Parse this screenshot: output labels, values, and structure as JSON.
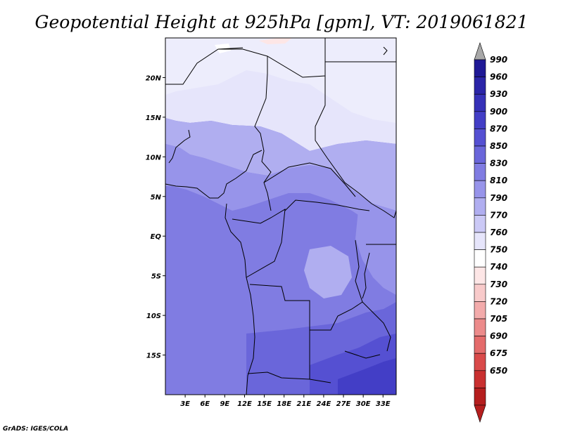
{
  "title": "Geopotential Height at 925hPa [gpm], VT: 2019061821",
  "credit": "GrADS: IGES/COLA",
  "map": {
    "lon_range": [
      0,
      35
    ],
    "lat_range": [
      -20,
      25
    ],
    "lon_ticks": [
      "3E",
      "6E",
      "9E",
      "12E",
      "15E",
      "18E",
      "21E",
      "24E",
      "27E",
      "30E",
      "33E"
    ],
    "lat_ticks": [
      "20N",
      "15N",
      "10N",
      "5N",
      "EQ",
      "5S",
      "10S",
      "15S"
    ]
  },
  "colorbar": {
    "labels": [
      "990",
      "960",
      "930",
      "900",
      "870",
      "850",
      "830",
      "810",
      "790",
      "770",
      "760",
      "750",
      "740",
      "730",
      "720",
      "705",
      "690",
      "675",
      "650"
    ],
    "colors": [
      "#1f1996",
      "#2b25a8",
      "#3631b8",
      "#433ec6",
      "#5550d2",
      "#6a66da",
      "#807ce2",
      "#9794ea",
      "#b0aef0",
      "#cbc9f6",
      "#e6e5fb",
      "#ffffff",
      "#fde6e6",
      "#f8caca",
      "#f3abab",
      "#ec8b8b",
      "#e46b6b",
      "#d94a4a",
      "#c93030",
      "#b51e1e"
    ],
    "top_arrow": "#a8a8a8",
    "bottom_arrow": "#b51e1e"
  }
}
